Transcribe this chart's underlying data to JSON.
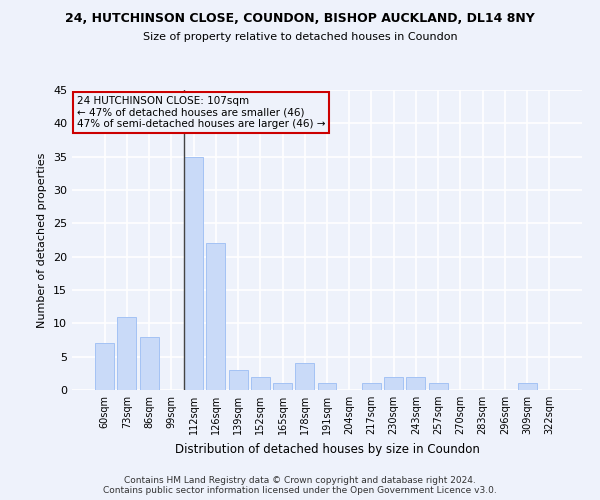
{
  "title1": "24, HUTCHINSON CLOSE, COUNDON, BISHOP AUCKLAND, DL14 8NY",
  "title2": "Size of property relative to detached houses in Coundon",
  "xlabel": "Distribution of detached houses by size in Coundon",
  "ylabel": "Number of detached properties",
  "categories": [
    "60sqm",
    "73sqm",
    "86sqm",
    "99sqm",
    "112sqm",
    "126sqm",
    "139sqm",
    "152sqm",
    "165sqm",
    "178sqm",
    "191sqm",
    "204sqm",
    "217sqm",
    "230sqm",
    "243sqm",
    "257sqm",
    "270sqm",
    "283sqm",
    "296sqm",
    "309sqm",
    "322sqm"
  ],
  "values": [
    7,
    11,
    8,
    0,
    35,
    22,
    3,
    2,
    1,
    4,
    1,
    0,
    1,
    2,
    2,
    1,
    0,
    0,
    0,
    1,
    0
  ],
  "bar_color": "#c9daf8",
  "bar_edge_color": "#a4c2f4",
  "background_color": "#eef2fb",
  "grid_color": "#ffffff",
  "vline_color": "#444444",
  "annotation_line1": "24 HUTCHINSON CLOSE: 107sqm",
  "annotation_line2": "← 47% of detached houses are smaller (46)",
  "annotation_line3": "47% of semi-detached houses are larger (46) →",
  "annotation_box_color": "#cc0000",
  "footer": "Contains HM Land Registry data © Crown copyright and database right 2024.\nContains public sector information licensed under the Open Government Licence v3.0.",
  "ylim": [
    0,
    45
  ],
  "yticks": [
    0,
    5,
    10,
    15,
    20,
    25,
    30,
    35,
    40,
    45
  ]
}
